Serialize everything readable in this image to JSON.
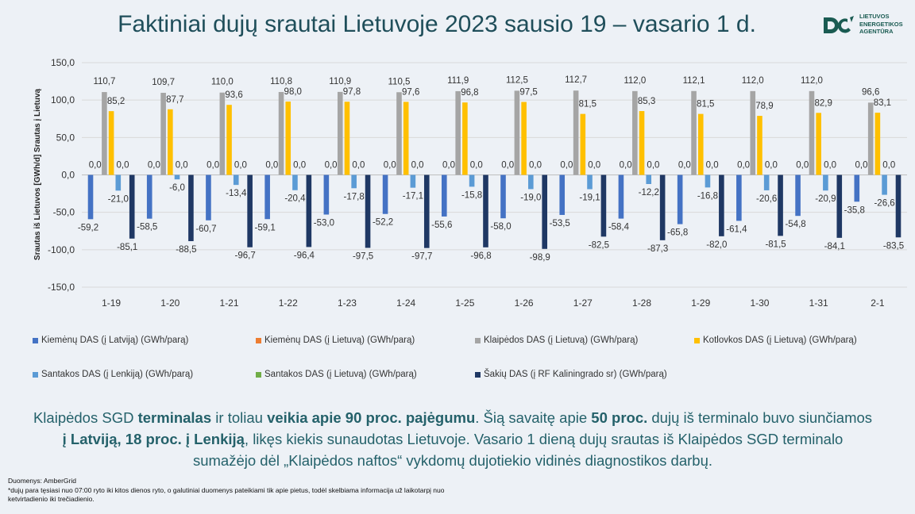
{
  "title": "Faktiniai dujų srautai Lietuvoje 2023 sausio 19 – vasario 1 d.",
  "logo_text": "LIETUVOS\nENERGETIKOS\nAGENTŪRA",
  "description": {
    "p1": "Klaipėdos SGD ",
    "b1": "terminalas",
    "p2": " ir toliau ",
    "b2": "veikia apie 90 proc. pajėgumu",
    "p3": ". Šią savaitę apie ",
    "b3": "50 proc.",
    "p4": " dujų iš terminalo buvo siunčiamos ",
    "b4": "į Latviją, 18 proc. į Lenkiją",
    "p5": ", likęs kiekis sunaudotas Lietuvoje. Vasario 1 dieną dujų srautas iš Klaipėdos SGD terminalo sumažėjo dėl „Klaipėdos naftos“ vykdomų dujotiekio vidinės diagnostikos darbų."
  },
  "footnote": {
    "source": "Duomenys: AmberGrid",
    "note": "*dujų para tęsiasi nuo 07:00 ryto iki kitos dienos ryto, o galutiniai duomenys pateikiami tik apie pietus, todėl skelbiama informacija už laikotarpį nuo ketvirtadienio iki trečiadienio."
  },
  "chart_data": {
    "type": "bar",
    "ylabel": "Srautas iš Lietuvos [GWh/d] Srautas į Lietuvą",
    "ylim": [
      -150,
      150
    ],
    "yticks": [
      "150,0",
      "100,0",
      "50,0",
      "0,0",
      "-50,0",
      "-100,0",
      "-150,0"
    ],
    "grid": true,
    "legend_position": "bottom",
    "categories": [
      "1-19",
      "1-20",
      "1-21",
      "1-22",
      "1-23",
      "1-24",
      "1-25",
      "1-26",
      "1-27",
      "1-28",
      "1-29",
      "1-30",
      "1-31",
      "2-1"
    ],
    "series": [
      {
        "name": "Kiemėnų DAS (į Latviją) (GWh/parą)",
        "color": "#4472c4",
        "values": [
          -59.2,
          -58.5,
          -60.7,
          -59.1,
          -53.0,
          -52.2,
          -55.6,
          -58.0,
          -53.5,
          -58.4,
          -65.8,
          -61.4,
          -54.8,
          -35.8
        ]
      },
      {
        "name": "Kiemėnų DAS (į Lietuvą) (GWh/parą)",
        "color": "#ed7d31",
        "values": [
          0,
          0,
          0,
          0,
          0,
          0,
          0,
          0,
          0,
          0,
          0,
          0,
          0,
          0
        ]
      },
      {
        "name": "Klaipėdos DAS (į Lietuvą) (GWh/parą)",
        "color": "#a5a5a5",
        "values": [
          110.7,
          109.7,
          110.0,
          110.8,
          110.9,
          110.5,
          111.9,
          112.5,
          112.7,
          112.0,
          112.1,
          112.0,
          112.0,
          96.6
        ]
      },
      {
        "name": "Kotlovkos DAS (į Lietuvą) (GWh/parą)",
        "color": "#ffc000",
        "values": [
          85.2,
          87.7,
          93.6,
          98.0,
          97.8,
          97.6,
          96.8,
          97.5,
          81.5,
          85.3,
          81.5,
          78.9,
          82.9,
          83.1
        ]
      },
      {
        "name": "Santakos DAS (į Lenkiją) (GWh/parą)",
        "color": "#5b9bd5",
        "values": [
          -21.0,
          -6.0,
          -13.4,
          -20.4,
          -17.8,
          -17.1,
          -15.8,
          -19.0,
          -19.1,
          -12.2,
          -16.8,
          -20.6,
          -20.9,
          -26.6
        ]
      },
      {
        "name": "Santakos DAS (į Lietuvą) (GWh/parą)",
        "color": "#70ad47",
        "values": [
          0,
          0,
          0,
          0,
          0,
          0,
          0,
          0,
          0,
          0,
          0,
          0,
          0,
          0
        ]
      },
      {
        "name": "Šakių DAS (į RF Kaliningrado sr) (GWh/parą)",
        "color": "#1f3864",
        "values": [
          -85.1,
          -88.5,
          -96.7,
          -96.4,
          -97.5,
          -97.7,
          -96.8,
          -98.9,
          -82.5,
          -87.3,
          -82.0,
          -81.5,
          -84.1,
          -83.5
        ]
      }
    ]
  }
}
